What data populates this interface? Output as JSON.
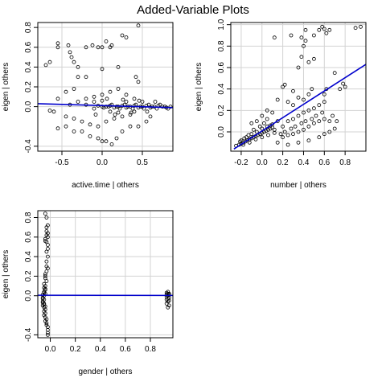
{
  "title": "Added-Variable Plots",
  "colors": {
    "fit_line": "#0000cc",
    "grid": "#d3d3d3",
    "points": "#000000",
    "frame": "#000000"
  },
  "chart_data": [
    {
      "type": "scatter",
      "xlabel": "active.time | others",
      "ylabel": "eigen  | others",
      "xlim": [
        -0.8,
        0.88
      ],
      "ylim": [
        -0.45,
        0.85
      ],
      "xticks": [
        -0.5,
        0.0,
        0.5
      ],
      "yticks": [
        -0.4,
        0.0,
        0.2,
        0.4,
        0.6,
        0.8
      ],
      "grid": true,
      "fit_line": {
        "x": [
          -0.8,
          0.88
        ],
        "y": [
          0.03,
          -0.01
        ]
      },
      "points": [
        [
          -0.7,
          0.42
        ],
        [
          -0.65,
          0.45
        ],
        [
          -0.55,
          0.6
        ],
        [
          -0.55,
          0.64
        ],
        [
          -0.42,
          0.62
        ],
        [
          -0.4,
          0.55
        ],
        [
          -0.38,
          0.5
        ],
        [
          -0.35,
          0.45
        ],
        [
          -0.3,
          0.4
        ],
        [
          -0.2,
          0.6
        ],
        [
          -0.12,
          0.62
        ],
        [
          -0.05,
          0.6
        ],
        [
          0.0,
          0.6
        ],
        [
          0.05,
          0.66
        ],
        [
          0.1,
          0.6
        ],
        [
          0.12,
          0.62
        ],
        [
          0.25,
          0.72
        ],
        [
          0.3,
          0.7
        ],
        [
          0.45,
          0.82
        ],
        [
          0.0,
          0.38
        ],
        [
          0.2,
          0.4
        ],
        [
          0.42,
          0.3
        ],
        [
          0.45,
          0.25
        ],
        [
          -0.35,
          0.18
        ],
        [
          -0.3,
          0.3
        ],
        [
          -0.2,
          0.3
        ],
        [
          -0.45,
          0.15
        ],
        [
          -0.55,
          0.08
        ],
        [
          -0.65,
          -0.04
        ],
        [
          -0.6,
          -0.05
        ],
        [
          -0.55,
          -0.22
        ],
        [
          -0.45,
          -0.2
        ],
        [
          -0.35,
          -0.25
        ],
        [
          -0.25,
          -0.25
        ],
        [
          -0.15,
          -0.3
        ],
        [
          -0.05,
          -0.32
        ],
        [
          0.0,
          -0.35
        ],
        [
          0.05,
          -0.35
        ],
        [
          0.12,
          -0.38
        ],
        [
          0.18,
          -0.32
        ],
        [
          0.25,
          -0.25
        ],
        [
          0.35,
          -0.2
        ],
        [
          0.45,
          -0.2
        ],
        [
          0.55,
          -0.15
        ],
        [
          0.6,
          -0.1
        ],
        [
          -0.45,
          -0.1
        ],
        [
          -0.35,
          -0.12
        ],
        [
          -0.25,
          -0.15
        ],
        [
          -0.15,
          -0.18
        ],
        [
          -0.05,
          -0.2
        ],
        [
          0.05,
          -0.15
        ],
        [
          0.15,
          -0.12
        ],
        [
          0.25,
          -0.1
        ],
        [
          0.35,
          -0.08
        ],
        [
          -0.4,
          0.02
        ],
        [
          -0.3,
          0.05
        ],
        [
          -0.2,
          0.08
        ],
        [
          -0.1,
          0.1
        ],
        [
          0.0,
          0.12
        ],
        [
          0.1,
          0.15
        ],
        [
          0.2,
          0.18
        ],
        [
          0.3,
          0.12
        ],
        [
          0.4,
          0.08
        ],
        [
          0.5,
          0.05
        ],
        [
          -0.2,
          0.02
        ],
        [
          -0.1,
          -0.02
        ],
        [
          0.0,
          0.0
        ],
        [
          0.05,
          0.0
        ],
        [
          0.1,
          0.01
        ],
        [
          0.15,
          -0.01
        ],
        [
          0.2,
          0.0
        ],
        [
          0.25,
          0.01
        ],
        [
          0.3,
          -0.01
        ],
        [
          0.35,
          0.0
        ],
        [
          0.4,
          0.01
        ],
        [
          0.45,
          -0.01
        ],
        [
          0.5,
          0.0
        ],
        [
          0.55,
          0.01
        ],
        [
          0.6,
          -0.01
        ],
        [
          0.65,
          0.0
        ],
        [
          0.7,
          0.01
        ],
        [
          0.75,
          0.0
        ],
        [
          0.8,
          -0.01
        ],
        [
          0.85,
          0.0
        ],
        [
          -0.05,
          0.01
        ],
        [
          0.02,
          -0.01
        ],
        [
          0.08,
          0.0
        ],
        [
          0.12,
          0.02
        ],
        [
          0.18,
          0.0
        ],
        [
          0.22,
          -0.02
        ],
        [
          0.28,
          0.02
        ],
        [
          0.32,
          0.0
        ],
        [
          0.38,
          -0.02
        ],
        [
          0.42,
          0.02
        ],
        [
          0.48,
          0.0
        ],
        [
          0.52,
          -0.02
        ],
        [
          0.58,
          0.02
        ],
        [
          0.62,
          0.0
        ],
        [
          0.68,
          -0.02
        ],
        [
          0.72,
          0.02
        ],
        [
          0.78,
          0.0
        ],
        [
          0.82,
          -0.02
        ],
        [
          -0.1,
          0.05
        ],
        [
          0.0,
          0.06
        ],
        [
          0.1,
          -0.05
        ],
        [
          0.2,
          -0.06
        ],
        [
          0.3,
          0.05
        ],
        [
          0.4,
          -0.05
        ],
        [
          -0.08,
          -0.08
        ],
        [
          0.06,
          0.08
        ],
        [
          0.16,
          -0.08
        ],
        [
          0.26,
          0.07
        ],
        [
          0.36,
          -0.06
        ],
        [
          0.46,
          0.06
        ],
        [
          0.56,
          -0.05
        ],
        [
          0.66,
          0.05
        ]
      ]
    },
    {
      "type": "scatter",
      "xlabel": "number | others",
      "ylabel": "eigen  | others",
      "xlim": [
        -0.3,
        1.0
      ],
      "ylim": [
        -0.18,
        1.02
      ],
      "xticks": [
        -0.2,
        0.0,
        0.2,
        0.4,
        0.6,
        0.8
      ],
      "yticks": [
        0.0,
        0.2,
        0.4,
        0.6,
        0.8,
        1.0
      ],
      "grid": true,
      "fit_line": {
        "x": [
          -0.27,
          1.0
        ],
        "y": [
          -0.16,
          0.63
        ]
      },
      "points": [
        [
          -0.25,
          -0.13
        ],
        [
          -0.22,
          -0.12
        ],
        [
          -0.2,
          -0.11
        ],
        [
          -0.18,
          -0.1
        ],
        [
          -0.16,
          -0.09
        ],
        [
          -0.14,
          -0.08
        ],
        [
          -0.12,
          -0.07
        ],
        [
          -0.1,
          -0.06
        ],
        [
          -0.08,
          -0.05
        ],
        [
          -0.06,
          -0.04
        ],
        [
          -0.04,
          -0.03
        ],
        [
          -0.02,
          -0.02
        ],
        [
          0.0,
          -0.01
        ],
        [
          0.02,
          0.0
        ],
        [
          0.04,
          0.01
        ],
        [
          0.06,
          0.02
        ],
        [
          0.08,
          0.03
        ],
        [
          0.1,
          0.04
        ],
        [
          -0.2,
          -0.08
        ],
        [
          -0.15,
          -0.05
        ],
        [
          -0.1,
          -0.02
        ],
        [
          -0.05,
          0.0
        ],
        [
          0.0,
          0.03
        ],
        [
          0.05,
          0.05
        ],
        [
          0.1,
          0.07
        ],
        [
          0.15,
          0.1
        ],
        [
          -0.18,
          -0.12
        ],
        [
          -0.12,
          -0.1
        ],
        [
          -0.06,
          -0.07
        ],
        [
          0.0,
          -0.05
        ],
        [
          0.06,
          -0.03
        ],
        [
          0.12,
          -0.01
        ],
        [
          0.0,
          0.15
        ],
        [
          0.05,
          0.2
        ],
        [
          -0.1,
          0.08
        ],
        [
          0.2,
          0.05
        ],
        [
          0.25,
          0.1
        ],
        [
          0.3,
          0.12
        ],
        [
          0.35,
          0.15
        ],
        [
          0.4,
          0.18
        ],
        [
          0.45,
          0.2
        ],
        [
          0.5,
          0.22
        ],
        [
          0.55,
          0.25
        ],
        [
          0.6,
          0.28
        ],
        [
          0.2,
          -0.05
        ],
        [
          0.25,
          -0.03
        ],
        [
          0.3,
          -0.02
        ],
        [
          0.35,
          0.0
        ],
        [
          0.4,
          0.02
        ],
        [
          0.45,
          0.05
        ],
        [
          0.5,
          0.08
        ],
        [
          0.55,
          0.1
        ],
        [
          0.6,
          0.12
        ],
        [
          0.65,
          0.1
        ],
        [
          0.15,
          0.3
        ],
        [
          0.2,
          0.42
        ],
        [
          0.22,
          0.44
        ],
        [
          0.3,
          0.38
        ],
        [
          0.35,
          0.6
        ],
        [
          0.38,
          0.7
        ],
        [
          0.4,
          0.8
        ],
        [
          0.38,
          0.88
        ],
        [
          0.42,
          0.85
        ],
        [
          0.5,
          0.9
        ],
        [
          0.55,
          0.95
        ],
        [
          0.58,
          0.98
        ],
        [
          0.6,
          0.96
        ],
        [
          0.62,
          0.92
        ],
        [
          0.65,
          0.95
        ],
        [
          0.12,
          0.88
        ],
        [
          0.28,
          0.9
        ],
        [
          0.42,
          0.95
        ],
        [
          0.45,
          0.65
        ],
        [
          0.5,
          0.68
        ],
        [
          0.6,
          0.35
        ],
        [
          0.62,
          0.4
        ],
        [
          0.7,
          0.55
        ],
        [
          0.75,
          0.4
        ],
        [
          0.78,
          0.45
        ],
        [
          0.8,
          0.42
        ],
        [
          0.9,
          0.97
        ],
        [
          0.95,
          0.98
        ],
        [
          0.35,
          0.32
        ],
        [
          0.4,
          0.3
        ],
        [
          0.45,
          0.35
        ],
        [
          0.48,
          0.4
        ],
        [
          0.3,
          0.25
        ],
        [
          0.25,
          0.28
        ],
        [
          0.1,
          0.18
        ],
        [
          0.05,
          0.12
        ],
        [
          -0.05,
          0.1
        ],
        [
          0.15,
          -0.1
        ],
        [
          0.25,
          -0.12
        ],
        [
          0.35,
          -0.1
        ],
        [
          0.45,
          -0.08
        ],
        [
          0.55,
          -0.05
        ],
        [
          0.6,
          -0.02
        ],
        [
          0.65,
          0.0
        ],
        [
          0.7,
          0.03
        ],
        [
          0.72,
          0.1
        ],
        [
          0.68,
          0.15
        ],
        [
          0.58,
          0.18
        ],
        [
          0.52,
          0.15
        ],
        [
          0.48,
          0.12
        ],
        [
          0.42,
          0.1
        ],
        [
          0.38,
          0.08
        ],
        [
          0.32,
          0.05
        ],
        [
          0.28,
          0.03
        ],
        [
          0.22,
          0.0
        ],
        [
          0.18,
          -0.02
        ],
        [
          0.12,
          0.02
        ],
        [
          0.08,
          0.06
        ],
        [
          0.02,
          0.08
        ],
        [
          -0.02,
          0.05
        ],
        [
          -0.08,
          0.02
        ],
        [
          -0.13,
          -0.03
        ],
        [
          -0.17,
          -0.06
        ],
        [
          -0.21,
          -0.09
        ]
      ]
    },
    {
      "type": "scatter",
      "xlabel": "gender | others",
      "ylabel": "eigen  | others",
      "xlim": [
        -0.1,
        0.98
      ],
      "ylim": [
        -0.43,
        0.87
      ],
      "xticks": [
        0.0,
        0.2,
        0.4,
        0.6,
        0.8
      ],
      "yticks": [
        -0.4,
        0.0,
        0.2,
        0.4,
        0.6,
        0.8
      ],
      "grid": true,
      "fit_line": {
        "x": [
          -0.1,
          0.98
        ],
        "y": [
          0.005,
          0.003
        ]
      },
      "points": [
        [
          -0.04,
          0.84
        ],
        [
          -0.03,
          0.8
        ],
        [
          -0.03,
          0.7
        ],
        [
          -0.02,
          0.64
        ],
        [
          -0.03,
          0.62
        ],
        [
          -0.02,
          0.6
        ],
        [
          -0.04,
          0.58
        ],
        [
          -0.03,
          0.55
        ],
        [
          -0.02,
          0.52
        ],
        [
          -0.03,
          0.45
        ],
        [
          -0.02,
          0.4
        ],
        [
          -0.03,
          0.3
        ],
        [
          -0.02,
          0.28
        ],
        [
          -0.03,
          0.25
        ],
        [
          -0.04,
          0.2
        ],
        [
          -0.03,
          0.15
        ],
        [
          -0.05,
          0.12
        ],
        [
          -0.04,
          0.1
        ],
        [
          -0.05,
          0.08
        ],
        [
          -0.04,
          0.06
        ],
        [
          -0.05,
          0.04
        ],
        [
          -0.04,
          0.02
        ],
        [
          -0.05,
          0.0
        ],
        [
          -0.06,
          -0.02
        ],
        [
          -0.05,
          -0.04
        ],
        [
          -0.06,
          -0.06
        ],
        [
          -0.05,
          -0.08
        ],
        [
          -0.06,
          -0.1
        ],
        [
          -0.05,
          -0.12
        ],
        [
          -0.04,
          -0.14
        ],
        [
          -0.05,
          -0.16
        ],
        [
          -0.04,
          -0.18
        ],
        [
          -0.05,
          -0.2
        ],
        [
          -0.04,
          -0.22
        ],
        [
          -0.03,
          -0.24
        ],
        [
          -0.04,
          -0.26
        ],
        [
          -0.03,
          -0.28
        ],
        [
          -0.03,
          -0.3
        ],
        [
          -0.02,
          -0.32
        ],
        [
          -0.02,
          -0.35
        ],
        [
          -0.02,
          -0.38
        ],
        [
          -0.02,
          -0.4
        ],
        [
          -0.04,
          0.18
        ],
        [
          -0.04,
          0.22
        ],
        [
          -0.03,
          0.35
        ],
        [
          -0.02,
          0.48
        ],
        [
          -0.03,
          0.66
        ],
        [
          -0.02,
          0.72
        ],
        [
          -0.04,
          0.56
        ],
        [
          -0.05,
          -0.09
        ],
        [
          -0.04,
          -0.11
        ],
        [
          -0.06,
          -0.03
        ],
        [
          -0.06,
          0.01
        ],
        [
          -0.05,
          0.03
        ],
        [
          -0.04,
          0.07
        ],
        [
          -0.06,
          -0.07
        ],
        [
          0.93,
          0.03
        ],
        [
          0.94,
          0.02
        ],
        [
          0.95,
          0.01
        ],
        [
          0.94,
          0.0
        ],
        [
          0.93,
          -0.01
        ],
        [
          0.95,
          -0.02
        ],
        [
          0.94,
          -0.03
        ],
        [
          0.93,
          -0.04
        ],
        [
          0.95,
          -0.05
        ],
        [
          0.94,
          -0.06
        ],
        [
          0.93,
          -0.08
        ],
        [
          0.95,
          -0.1
        ],
        [
          0.94,
          -0.12
        ],
        [
          0.95,
          0.02
        ],
        [
          0.93,
          0.01
        ],
        [
          0.94,
          0.04
        ]
      ]
    }
  ]
}
